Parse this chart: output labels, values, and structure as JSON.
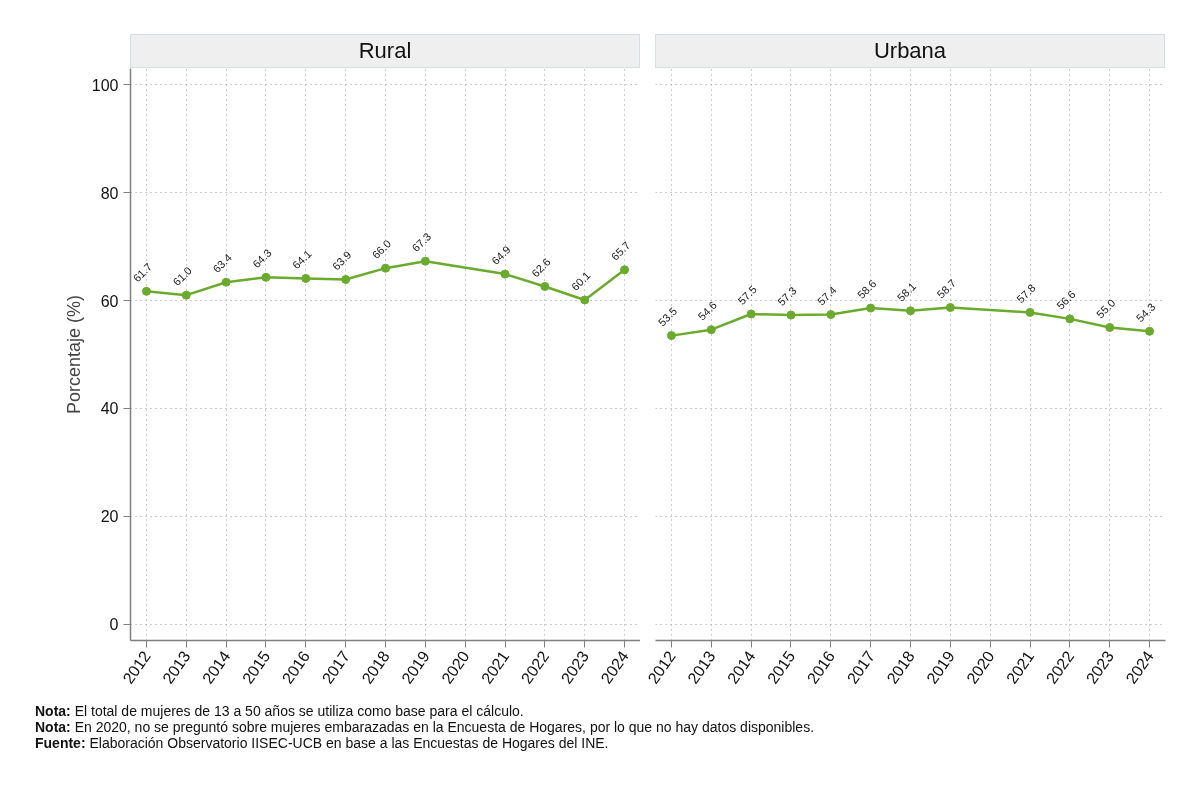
{
  "chart_data": [
    {
      "type": "line",
      "title": "Rural",
      "ylabel": "Porcentaje (%)",
      "x": [
        2012,
        2013,
        2014,
        2015,
        2016,
        2017,
        2018,
        2019,
        2021,
        2022,
        2023,
        2024
      ],
      "xlim": [
        2011.6,
        2024.4
      ],
      "xticks": [
        2012,
        2013,
        2014,
        2015,
        2016,
        2017,
        2018,
        2019,
        2020,
        2021,
        2022,
        2023,
        2024
      ],
      "ylim": [
        -3,
        103
      ],
      "yticks": [
        0,
        20,
        40,
        60,
        80,
        100
      ],
      "series": [
        {
          "color": "#6aab2e",
          "values": [
            61.7,
            61.0,
            63.4,
            64.3,
            64.1,
            63.9,
            66.0,
            67.3,
            64.9,
            62.6,
            60.1,
            65.7
          ],
          "value_labels": [
            "61.7",
            "61.0",
            "63.4",
            "64.3",
            "64.1",
            "63.9",
            "66.0",
            "67.3",
            "64.9",
            "62.6",
            "60.1",
            "65.7"
          ]
        }
      ],
      "marker": "circle",
      "line_style": "solid",
      "grid": true,
      "annotations": [
        "Nota: El total de mujeres de 13 a 50 años se utiliza como base para el cálculo.",
        "Nota: En 2020, no se preguntó sobre mujeres embarazadas en la Encuesta de Hogares, por lo que no hay datos disponibles.",
        "Fuente: Elaboración Observatorio IISEC-UCB en base a las Encuestas de Hogares del INE."
      ]
    },
    {
      "type": "line",
      "title": "Urbana",
      "x": [
        2012,
        2013,
        2014,
        2015,
        2016,
        2017,
        2018,
        2019,
        2021,
        2022,
        2023,
        2024
      ],
      "xlim": [
        2011.6,
        2024.4
      ],
      "xticks": [
        2012,
        2013,
        2014,
        2015,
        2016,
        2017,
        2018,
        2019,
        2020,
        2021,
        2022,
        2023,
        2024
      ],
      "ylim": [
        -3,
        103
      ],
      "yticks": [
        0,
        20,
        40,
        60,
        80,
        100
      ],
      "series": [
        {
          "color": "#6aab2e",
          "values": [
            53.5,
            54.6,
            57.5,
            57.3,
            57.4,
            58.6,
            58.1,
            58.7,
            57.8,
            56.6,
            55.0,
            54.3
          ],
          "value_labels": [
            "53.5",
            "54.6",
            "57.5",
            "57.3",
            "57.4",
            "58.6",
            "58.1",
            "58.7",
            "57.8",
            "56.6",
            "55.0",
            "54.3"
          ]
        }
      ],
      "marker": "circle",
      "line_style": "solid",
      "grid": true,
      "tick_labels": "x"
    }
  ]
}
